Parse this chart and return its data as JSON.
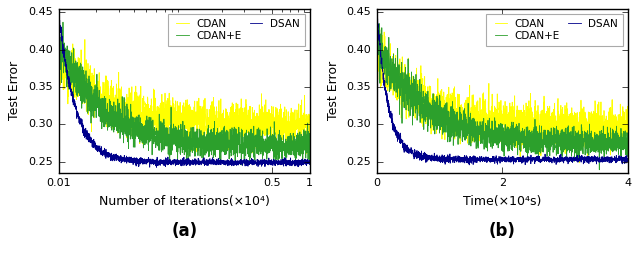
{
  "title_a": "(a)",
  "title_b": "(b)",
  "ylabel": "Test Error",
  "xlabel_a": "Number of Iterations(×10⁴)",
  "xlabel_b": "Time(×10⁴s)",
  "ylim": [
    0.235,
    0.455
  ],
  "xlim_a": [
    0.01,
    1.0
  ],
  "xlim_b": [
    0,
    4
  ],
  "yticks": [
    0.25,
    0.3,
    0.35,
    0.4,
    0.45
  ],
  "xticks_a_vals": [
    0.01,
    0.5,
    1
  ],
  "xticks_a_labels": [
    "0.01",
    "0.5",
    "1"
  ],
  "xticks_b": [
    0,
    2,
    4
  ],
  "colors": {
    "CDAN": "#ffff00",
    "CDAN+E": "#2ca02c",
    "DSAN": "#00008b"
  },
  "seed": 42,
  "n_points": 2000,
  "background": "#ffffff"
}
